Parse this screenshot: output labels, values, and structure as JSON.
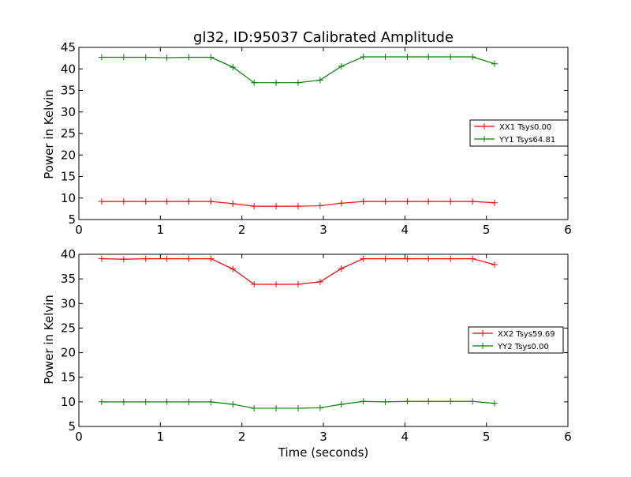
{
  "chart_data": [
    {
      "type": "line",
      "title": "gl32, ID:95037 Calibrated Amplitude",
      "xlabel": "",
      "ylabel": "Power in Kelvin",
      "xlim": [
        0,
        6
      ],
      "ylim": [
        5,
        45
      ],
      "xticks": [
        "0",
        "1",
        "2",
        "3",
        "4",
        "5",
        "6"
      ],
      "yticks": [
        "5",
        "10",
        "15",
        "20",
        "25",
        "30",
        "35",
        "40",
        "45"
      ],
      "legend_position": "right",
      "x": [
        0.28,
        0.55,
        0.82,
        1.08,
        1.35,
        1.62,
        1.89,
        2.15,
        2.42,
        2.69,
        2.96,
        3.22,
        3.49,
        3.76,
        4.03,
        4.29,
        4.56,
        4.83,
        5.1
      ],
      "series": [
        {
          "name": "XX1 Tsys0.00",
          "color": "#ff0000",
          "values": [
            9.2,
            9.2,
            9.2,
            9.2,
            9.2,
            9.2,
            8.7,
            8.1,
            8.1,
            8.1,
            8.2,
            8.8,
            9.2,
            9.2,
            9.2,
            9.2,
            9.2,
            9.2,
            8.9
          ]
        },
        {
          "name": "YY1 Tsys64.81",
          "color": "#008000",
          "values": [
            42.7,
            42.7,
            42.7,
            42.6,
            42.7,
            42.7,
            40.4,
            36.8,
            36.8,
            36.8,
            37.4,
            40.6,
            42.8,
            42.8,
            42.8,
            42.8,
            42.8,
            42.8,
            41.2
          ]
        }
      ]
    },
    {
      "type": "line",
      "title": "",
      "xlabel": "Time (seconds)",
      "ylabel": "Power in Kelvin",
      "xlim": [
        0,
        6
      ],
      "ylim": [
        5,
        40
      ],
      "xticks": [
        "0",
        "1",
        "2",
        "3",
        "4",
        "5",
        "6"
      ],
      "yticks": [
        "5",
        "10",
        "15",
        "20",
        "25",
        "30",
        "35",
        "40"
      ],
      "legend_position": "right",
      "x": [
        0.28,
        0.55,
        0.82,
        1.08,
        1.35,
        1.62,
        1.89,
        2.15,
        2.42,
        2.69,
        2.96,
        3.22,
        3.49,
        3.76,
        4.03,
        4.29,
        4.56,
        4.83,
        5.1
      ],
      "series": [
        {
          "name": "XX2 Tsys59.69",
          "color": "#ff0000",
          "values": [
            39.1,
            39.0,
            39.1,
            39.1,
            39.1,
            39.1,
            37.0,
            33.9,
            33.9,
            33.9,
            34.4,
            37.1,
            39.1,
            39.1,
            39.1,
            39.1,
            39.1,
            39.1,
            37.9
          ]
        },
        {
          "name": "YY2 Tsys0.00",
          "color": "#008000",
          "values": [
            10.0,
            10.0,
            10.0,
            10.0,
            10.0,
            10.0,
            9.5,
            8.7,
            8.7,
            8.7,
            8.8,
            9.5,
            10.1,
            10.0,
            10.1,
            10.1,
            10.1,
            10.1,
            9.7
          ]
        }
      ]
    }
  ]
}
